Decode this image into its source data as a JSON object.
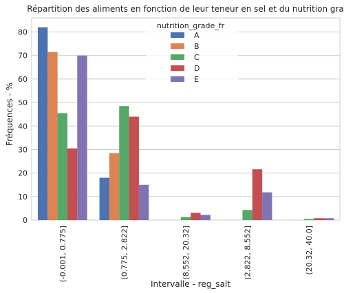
{
  "chart_data": {
    "type": "bar",
    "title": "Répartition des aliments en fonction de leur teneur en sel et du nutrition grade",
    "xlabel": "Intervalle - reg_salt",
    "ylabel": "Fréquences - %",
    "ylim": [
      0,
      86
    ],
    "yticks": [
      0,
      10,
      20,
      30,
      40,
      50,
      60,
      70,
      80
    ],
    "grid": "horizontal",
    "legend_position": "top-center",
    "legend_title": "nutrition_grade_fr",
    "categories": [
      "(-0.001, 0.775]",
      "(0.775, 2.822]",
      "(8.552, 20.32]",
      "(2.822, 8.552]",
      "(20.32, 40.0]"
    ],
    "series": [
      {
        "name": "A",
        "color": "#4c72b0",
        "values": [
          82,
          18,
          0,
          0,
          0
        ]
      },
      {
        "name": "B",
        "color": "#dd8452",
        "values": [
          71.5,
          28.5,
          0,
          0,
          0
        ]
      },
      {
        "name": "C",
        "color": "#55a868",
        "values": [
          45.5,
          48.5,
          1.3,
          4.3,
          0.5
        ]
      },
      {
        "name": "D",
        "color": "#c44e52",
        "values": [
          30.5,
          44,
          3.1,
          21.6,
          0.8
        ]
      },
      {
        "name": "E",
        "color": "#8172b3",
        "values": [
          70,
          15,
          2.2,
          11.8,
          0.8
        ]
      }
    ]
  }
}
